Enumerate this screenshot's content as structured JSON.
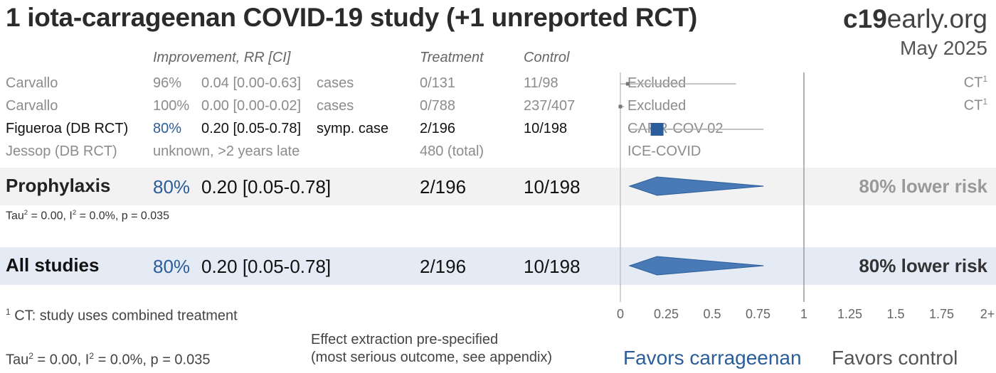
{
  "title": "1 iota-carrageenan COVID-19 study (+1 unreported RCT)",
  "brand": {
    "bold": "c19",
    "rest": "early.org"
  },
  "date": "May 2025",
  "headers": {
    "improvement": "Improvement, RR [CI]",
    "treatment": "Treatment",
    "control": "Control"
  },
  "studies": [
    {
      "name": "Carvallo",
      "improvement": "96%",
      "rr_ci": "0.04 [0.00-0.63]",
      "outcome": "cases",
      "treatment": "0/131",
      "control": "11/98",
      "label": "Excluded",
      "note": "CT",
      "note_sup": "1"
    },
    {
      "name": "Carvallo",
      "improvement": "100%",
      "rr_ci": "0.00 [0.00-0.02]",
      "outcome": "cases",
      "treatment": "0/788",
      "control": "237/407",
      "label": "Excluded",
      "note": "CT",
      "note_sup": "1"
    },
    {
      "name": "Figueroa (DB RCT)",
      "improvement": "80%",
      "rr_ci": "0.20 [0.05-0.78]",
      "outcome": "symp. case",
      "treatment": "2/196",
      "control": "10/198",
      "label": "CARR-COV-02",
      "note": "",
      "note_sup": ""
    },
    {
      "name": "Jessop (DB RCT)",
      "improvement": "unknown, >2 years late",
      "rr_ci": "",
      "outcome": "",
      "treatment": "480 (total)",
      "control": "",
      "label": "ICE-COVID",
      "note": "",
      "note_sup": ""
    }
  ],
  "summaries": [
    {
      "name": "Prophylaxis",
      "improvement": "80%",
      "rr_ci": "0.20 [0.05-0.78]",
      "treatment": "2/196",
      "control": "10/198",
      "risk": "80% lower risk",
      "stats": {
        "tau": "Tau",
        "tau_sup": "2",
        "i": " = 0.00, I",
        "i_sup": "2",
        "rest": " = 0.0%, p = 0.035"
      }
    },
    {
      "name": "All studies",
      "improvement": "80%",
      "rr_ci": "0.20 [0.05-0.78]",
      "treatment": "2/196",
      "control": "10/198",
      "risk": "80% lower risk"
    }
  ],
  "footnote": {
    "sup": "1",
    "text": " CT: study uses combined treatment"
  },
  "overall_stats": {
    "tau": "Tau",
    "tau_sup": "2",
    "i": " = 0.00, I",
    "i_sup": "2",
    "rest": " = 0.0%, p = 0.035"
  },
  "extraction_note": [
    "Effect extraction pre-specified",
    "(most serious outcome, see appendix)"
  ],
  "favors": {
    "left": "Favors carrageenan",
    "right": "Favors control"
  },
  "chart_data": {
    "type": "forest",
    "x_ticks": [
      "0",
      "0.25",
      "0.5",
      "0.75",
      "1",
      "1.25",
      "1.5",
      "1.75",
      "2+"
    ],
    "xlim": [
      0,
      2
    ],
    "reference_line": 1,
    "points": [
      {
        "study": "Carvallo",
        "rr": 0.04,
        "lo": 0.0,
        "hi": 0.63,
        "excluded": true
      },
      {
        "study": "Carvallo",
        "rr": 0.0,
        "lo": 0.0,
        "hi": 0.02,
        "excluded": true
      },
      {
        "study": "Figueroa (DB RCT)",
        "rr": 0.2,
        "lo": 0.05,
        "hi": 0.78,
        "excluded": false
      }
    ],
    "diamonds": [
      {
        "group": "Prophylaxis",
        "rr": 0.2,
        "lo": 0.05,
        "hi": 0.78
      },
      {
        "group": "All studies",
        "rr": 0.2,
        "lo": 0.05,
        "hi": 0.78
      }
    ],
    "colors": {
      "point": "#2a5d9a",
      "diamond": "#4a7ab5",
      "ci": "#b0b0b0",
      "axis": "#bbbbbb"
    }
  }
}
